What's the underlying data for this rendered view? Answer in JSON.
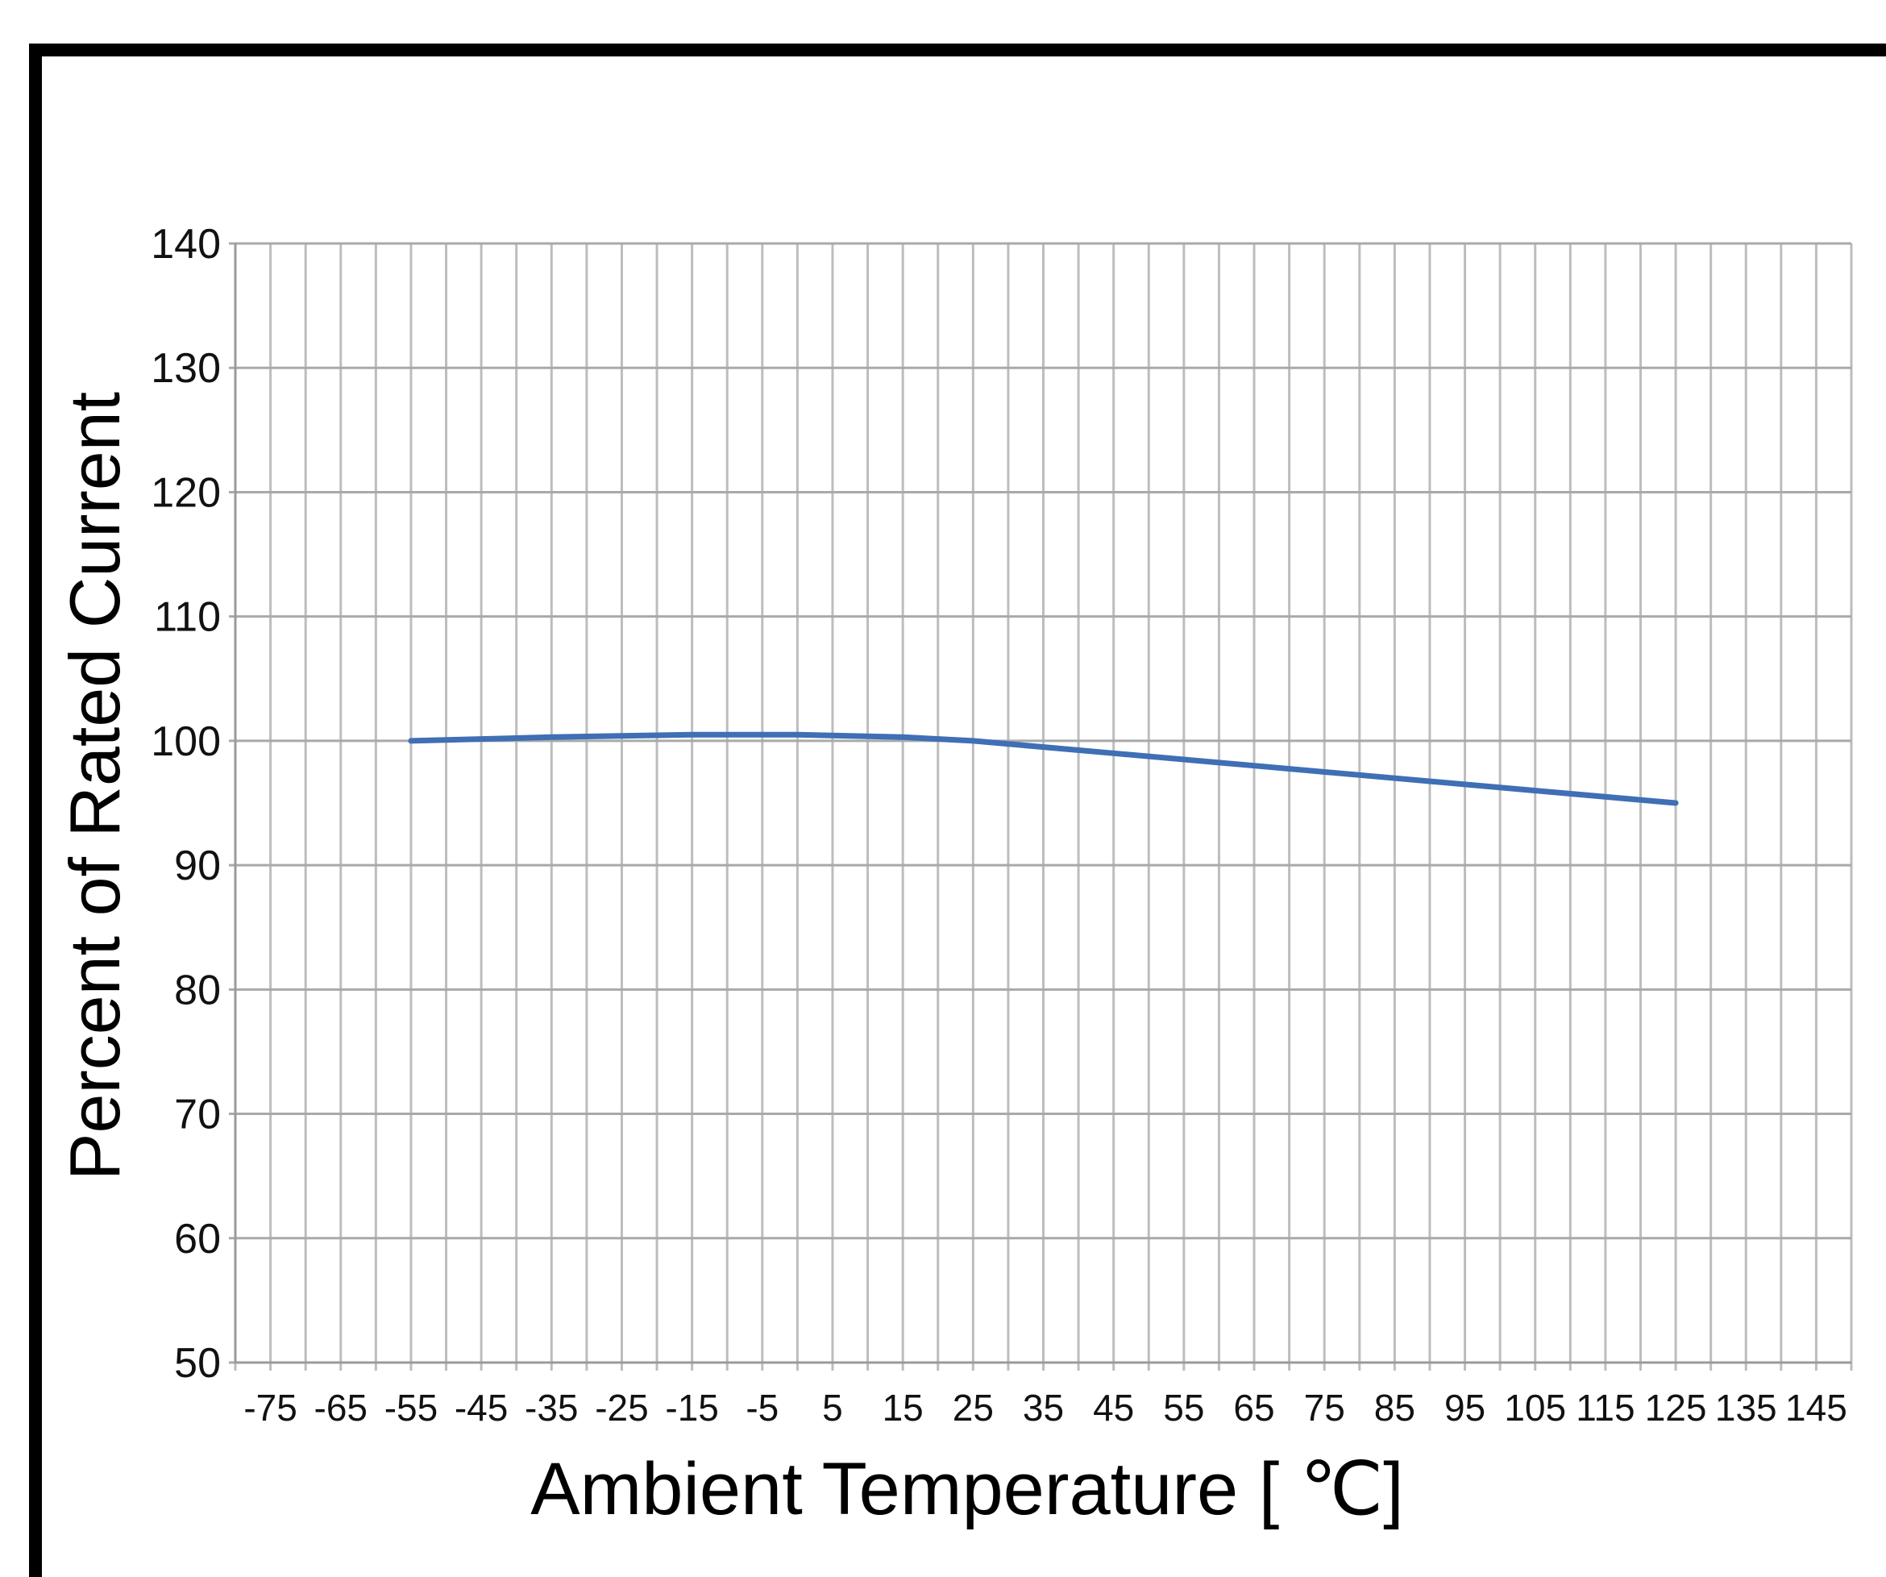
{
  "chart_data": {
    "type": "line",
    "title": "",
    "xlabel": "Ambient Temperature [ ℃]",
    "ylabel": "Percent of Rated Current",
    "xlim": [
      -80,
      150
    ],
    "ylim": [
      50,
      140
    ],
    "x_ticks": [
      "-75",
      "-65",
      "-55",
      "-45",
      "-35",
      "-25",
      "-15",
      "-5",
      "5",
      "15",
      "25",
      "35",
      "45",
      "55",
      "65",
      "75",
      "85",
      "95",
      "105",
      "115",
      "125",
      "135",
      "145"
    ],
    "y_ticks": [
      "50",
      "60",
      "70",
      "80",
      "90",
      "100",
      "110",
      "120",
      "130",
      "140"
    ],
    "grid": true,
    "series": [
      {
        "color": "#3f6fb4",
        "x": [
          -55,
          -35,
          -15,
          0,
          15,
          25,
          45,
          65,
          85,
          105,
          125
        ],
        "y": [
          100,
          100.3,
          100.5,
          100.5,
          100.3,
          100,
          99,
          98,
          97,
          96,
          95
        ]
      }
    ]
  }
}
